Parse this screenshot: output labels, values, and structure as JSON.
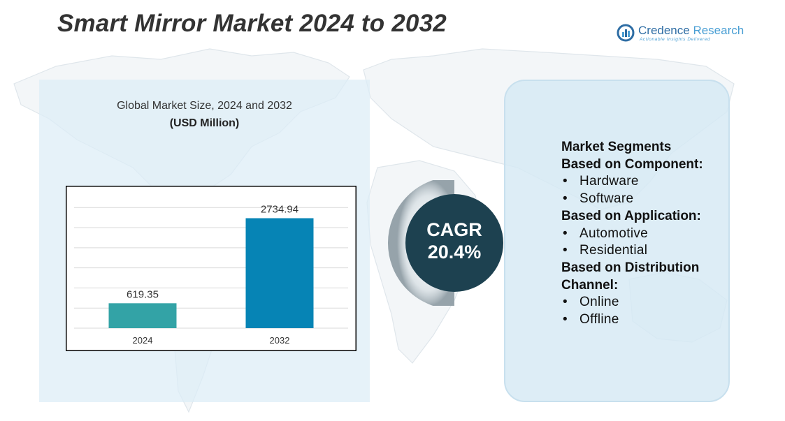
{
  "title": "Smart Mirror Market 2024 to 2032",
  "logo": {
    "name_part1": "Credence",
    "name_part2": " Research",
    "tagline": "Actionable Insights Delivered"
  },
  "chart_data": {
    "type": "bar",
    "title": "Global Market Size, 2024 and 2032",
    "subtitle": "(USD Million)",
    "categories": [
      "2024",
      "2032"
    ],
    "values": [
      619.35,
      2734.94
    ],
    "value_labels": [
      "619.35",
      "2734.94"
    ],
    "colors": [
      "#33a3a6",
      "#0684b5"
    ],
    "ylim": [
      0,
      3300
    ],
    "grid": true
  },
  "cagr": {
    "label": "CAGR",
    "value": "20.4%"
  },
  "segments": {
    "heading": "Market Segments",
    "groups": [
      {
        "title": "Based on Component:",
        "items": [
          "Hardware",
          "Software"
        ]
      },
      {
        "title": "Based on Application:",
        "items": [
          "Automotive",
          "Residential"
        ]
      },
      {
        "title": "Based on Distribution Channel:",
        "items": [
          "Online",
          "Offline"
        ]
      }
    ]
  },
  "colors": {
    "title": "#333333",
    "cagr_circle": "#1d4150",
    "panel_bg": "#ddedf7",
    "logo": "#2e6da4"
  }
}
